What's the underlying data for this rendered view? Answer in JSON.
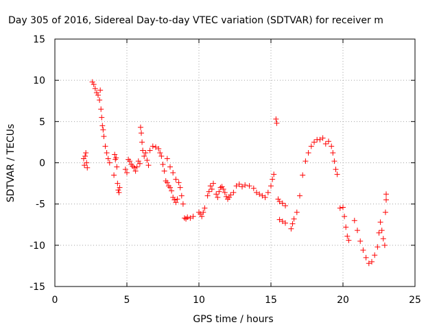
{
  "chart_data": {
    "type": "scatter",
    "title": "Day 305 of 2016, Sidereal Day-to-day VTEC variation (SDTVAR) for receiver m",
    "xlabel": "GPS time / hours",
    "ylabel": "SDTVAR / TECUs",
    "xlim": [
      0,
      25
    ],
    "ylim": [
      -15,
      15
    ],
    "xticks": [
      "0",
      "5",
      "10",
      "15",
      "20",
      "25"
    ],
    "yticks": [
      "15",
      "10",
      "5",
      "0",
      "-5",
      "-10",
      "-15"
    ],
    "grid": true,
    "marker": "+",
    "marker_color": "#ff0000",
    "series": [
      {
        "name": "SDTVAR",
        "points": [
          [
            2.0,
            0.5
          ],
          [
            2.05,
            -0.3
          ],
          [
            2.1,
            0.8
          ],
          [
            2.15,
            1.2
          ],
          [
            2.2,
            0.0
          ],
          [
            2.25,
            -0.6
          ],
          [
            2.6,
            9.8
          ],
          [
            2.7,
            9.5
          ],
          [
            2.8,
            9.0
          ],
          [
            2.9,
            8.5
          ],
          [
            3.0,
            8.2
          ],
          [
            3.1,
            7.6
          ],
          [
            3.15,
            8.8
          ],
          [
            3.2,
            6.5
          ],
          [
            3.25,
            5.5
          ],
          [
            3.3,
            4.5
          ],
          [
            3.35,
            4.0
          ],
          [
            3.4,
            3.2
          ],
          [
            3.5,
            2.0
          ],
          [
            3.6,
            1.2
          ],
          [
            3.7,
            0.5
          ],
          [
            3.8,
            0.0
          ],
          [
            4.1,
            -1.5
          ],
          [
            4.15,
            1.0
          ],
          [
            4.2,
            0.4
          ],
          [
            4.25,
            0.6
          ],
          [
            4.3,
            -0.5
          ],
          [
            4.35,
            -2.5
          ],
          [
            4.4,
            -3.3
          ],
          [
            4.45,
            -3.6
          ],
          [
            4.5,
            -3.0
          ],
          [
            4.9,
            -0.8
          ],
          [
            5.0,
            -1.2
          ],
          [
            5.1,
            0.4
          ],
          [
            5.2,
            0.2
          ],
          [
            5.3,
            -0.2
          ],
          [
            5.4,
            -0.4
          ],
          [
            5.5,
            -0.6
          ],
          [
            5.6,
            -1.0
          ],
          [
            5.7,
            -0.5
          ],
          [
            5.8,
            0.2
          ],
          [
            5.9,
            -0.1
          ],
          [
            5.95,
            4.3
          ],
          [
            6.0,
            3.6
          ],
          [
            6.05,
            2.5
          ],
          [
            6.1,
            1.5
          ],
          [
            6.2,
            0.8
          ],
          [
            6.3,
            1.2
          ],
          [
            6.4,
            0.3
          ],
          [
            6.5,
            -0.3
          ],
          [
            6.6,
            1.5
          ],
          [
            6.8,
            2.0
          ],
          [
            7.0,
            1.9
          ],
          [
            7.2,
            1.7
          ],
          [
            7.3,
            1.2
          ],
          [
            7.4,
            0.8
          ],
          [
            7.5,
            -0.2
          ],
          [
            7.6,
            -1.0
          ],
          [
            7.7,
            -2.2
          ],
          [
            7.8,
            -2.4
          ],
          [
            7.9,
            -2.8
          ],
          [
            8.0,
            -3.0
          ],
          [
            8.1,
            -3.4
          ],
          [
            8.2,
            -4.2
          ],
          [
            8.3,
            -4.5
          ],
          [
            8.4,
            -4.8
          ],
          [
            8.5,
            -4.4
          ],
          [
            7.8,
            0.5
          ],
          [
            8.0,
            -0.5
          ],
          [
            8.2,
            -1.2
          ],
          [
            8.4,
            -2.0
          ],
          [
            8.6,
            -2.4
          ],
          [
            8.7,
            -3.0
          ],
          [
            8.8,
            -4.0
          ],
          [
            8.9,
            -5.0
          ],
          [
            9.0,
            -6.7
          ],
          [
            9.1,
            -6.8
          ],
          [
            9.2,
            -6.6
          ],
          [
            9.4,
            -6.7
          ],
          [
            9.6,
            -6.5
          ],
          [
            10.0,
            -6.0
          ],
          [
            10.1,
            -6.2
          ],
          [
            10.2,
            -6.5
          ],
          [
            10.3,
            -6.0
          ],
          [
            10.4,
            -5.5
          ],
          [
            10.6,
            -4.0
          ],
          [
            10.7,
            -3.5
          ],
          [
            10.8,
            -2.8
          ],
          [
            10.9,
            -3.2
          ],
          [
            11.0,
            -2.5
          ],
          [
            11.2,
            -3.8
          ],
          [
            11.3,
            -4.2
          ],
          [
            11.4,
            -3.5
          ],
          [
            11.5,
            -3.0
          ],
          [
            11.6,
            -2.9
          ],
          [
            11.7,
            -3.2
          ],
          [
            11.8,
            -3.6
          ],
          [
            11.9,
            -4.1
          ],
          [
            12.0,
            -4.4
          ],
          [
            12.1,
            -4.2
          ],
          [
            12.2,
            -3.9
          ],
          [
            12.4,
            -3.6
          ],
          [
            12.6,
            -2.8
          ],
          [
            12.8,
            -2.6
          ],
          [
            13.0,
            -2.9
          ],
          [
            13.2,
            -2.7
          ],
          [
            13.5,
            -2.8
          ],
          [
            13.8,
            -3.1
          ],
          [
            14.0,
            -3.6
          ],
          [
            14.2,
            -3.8
          ],
          [
            14.4,
            -4.0
          ],
          [
            14.6,
            -4.2
          ],
          [
            14.8,
            -3.6
          ],
          [
            15.0,
            -2.8
          ],
          [
            15.1,
            -2.0
          ],
          [
            15.2,
            -1.4
          ],
          [
            15.35,
            5.3
          ],
          [
            15.4,
            4.8
          ],
          [
            15.5,
            -4.4
          ],
          [
            15.6,
            -4.7
          ],
          [
            15.8,
            -4.9
          ],
          [
            16.0,
            -5.2
          ],
          [
            15.6,
            -6.9
          ],
          [
            15.8,
            -7.1
          ],
          [
            16.0,
            -7.3
          ],
          [
            16.4,
            -8.0
          ],
          [
            16.5,
            -7.4
          ],
          [
            16.6,
            -6.8
          ],
          [
            16.8,
            -6.0
          ],
          [
            17.0,
            -4.0
          ],
          [
            17.2,
            -1.5
          ],
          [
            17.4,
            0.2
          ],
          [
            17.6,
            1.2
          ],
          [
            17.8,
            2.0
          ],
          [
            18.0,
            2.5
          ],
          [
            18.2,
            2.8
          ],
          [
            18.4,
            2.8
          ],
          [
            18.6,
            3.0
          ],
          [
            18.8,
            2.3
          ],
          [
            19.0,
            2.6
          ],
          [
            19.2,
            2.0
          ],
          [
            19.3,
            1.2
          ],
          [
            19.4,
            0.2
          ],
          [
            19.5,
            -0.8
          ],
          [
            19.6,
            -1.4
          ],
          [
            19.8,
            -5.5
          ],
          [
            20.0,
            -5.4
          ],
          [
            20.1,
            -6.5
          ],
          [
            20.2,
            -7.8
          ],
          [
            20.3,
            -8.9
          ],
          [
            20.4,
            -9.4
          ],
          [
            20.8,
            -7.0
          ],
          [
            21.0,
            -8.2
          ],
          [
            21.2,
            -9.5
          ],
          [
            21.4,
            -10.6
          ],
          [
            21.6,
            -11.5
          ],
          [
            21.8,
            -12.2
          ],
          [
            22.0,
            -12.0
          ],
          [
            22.2,
            -11.2
          ],
          [
            22.4,
            -10.2
          ],
          [
            22.5,
            -8.5
          ],
          [
            22.6,
            -7.2
          ],
          [
            22.7,
            -8.2
          ],
          [
            22.8,
            -9.2
          ],
          [
            22.9,
            -10.0
          ],
          [
            22.95,
            -6.0
          ],
          [
            23.0,
            -4.5
          ],
          [
            23.0,
            -3.8
          ]
        ]
      }
    ]
  }
}
